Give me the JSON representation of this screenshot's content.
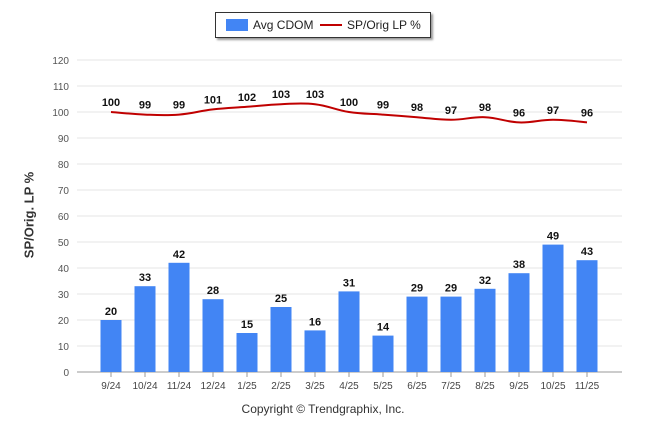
{
  "legend": {
    "bar_label": "Avg CDOM",
    "line_label": "SP/Orig LP %"
  },
  "copyright": "Copyright © Trendgraphix, Inc.",
  "colors": {
    "bar": "#4285f4",
    "line": "#c00000",
    "grid": "#e6e6e6",
    "axis": "#999999"
  },
  "chart_data": {
    "type": "bar+line",
    "categories": [
      "9/24",
      "10/24",
      "11/24",
      "12/24",
      "1/25",
      "2/25",
      "3/25",
      "4/25",
      "5/25",
      "6/25",
      "7/25",
      "8/25",
      "9/25",
      "10/25",
      "11/25"
    ],
    "series": [
      {
        "name": "Avg CDOM",
        "type": "bar",
        "values": [
          20,
          33,
          42,
          28,
          15,
          25,
          16,
          31,
          14,
          29,
          29,
          32,
          38,
          49,
          43
        ]
      },
      {
        "name": "SP/Orig LP %",
        "type": "line",
        "values": [
          100,
          99,
          99,
          101,
          102,
          103,
          103,
          100,
          99,
          98,
          97,
          98,
          96,
          97,
          96
        ]
      }
    ],
    "ylabel": "SP/Orig. LP %",
    "ylim": [
      0,
      120
    ],
    "yticks": [
      0,
      10,
      20,
      30,
      40,
      50,
      60,
      70,
      80,
      90,
      100,
      110,
      120
    ],
    "grid": true,
    "legend": "top-center"
  }
}
